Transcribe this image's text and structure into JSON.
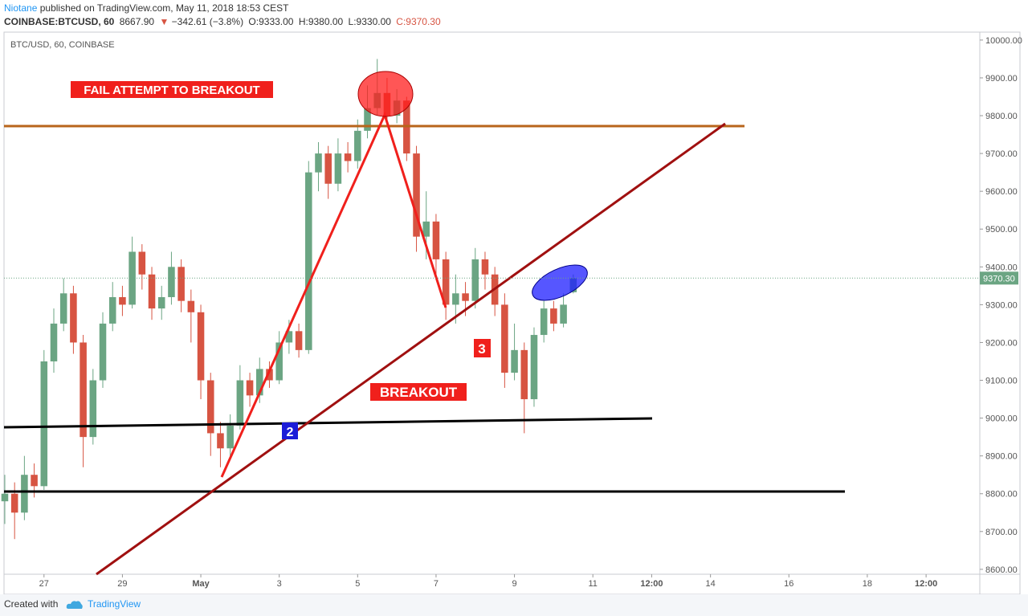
{
  "header": {
    "author": "Niotane",
    "published": "published on TradingView.com, May 11, 2018 18:53 CEST",
    "symbol": "COINBASE:BTCUSD, 60",
    "last": "8667.90",
    "arrow": "▼",
    "change": "−342.61 (−3.8%)",
    "open": "O:9333.00",
    "high": "H:9380.00",
    "low": "L:9330.00",
    "close": "C:9370.30"
  },
  "footer": {
    "created": "Created with",
    "brand": "TradingView"
  },
  "chart_data": {
    "type": "candlestick",
    "title": "BTC/USD, 60, COINBASE",
    "x": [
      -1,
      -0.75,
      -0.5,
      -0.25,
      0,
      0.25,
      0.5,
      0.75,
      1,
      1.25,
      1.5,
      1.75,
      2,
      2.25,
      2.5,
      2.75,
      3,
      3.25,
      3.5,
      3.75,
      4,
      4.25,
      4.5,
      4.75,
      5,
      5.25,
      5.5,
      5.75,
      6,
      6.25,
      6.5,
      6.75,
      7,
      7.25,
      7.5,
      7.75,
      8,
      8.25,
      8.5,
      8.75,
      9,
      9.25,
      9.5,
      9.75,
      10,
      10.25,
      10.5,
      10.75,
      11,
      11.25,
      11.5,
      11.75,
      12,
      12.25,
      12.5,
      12.75,
      13,
      13.25,
      13.5
    ],
    "open": [
      8780,
      8800,
      8750,
      8850,
      8820,
      9150,
      9250,
      9330,
      9200,
      8950,
      9100,
      9250,
      9320,
      9300,
      9440,
      9380,
      9290,
      9320,
      9400,
      9310,
      9280,
      9100,
      8960,
      8920,
      8980,
      9100,
      9060,
      9130,
      9100,
      9200,
      9230,
      9180,
      9650,
      9700,
      9620,
      9700,
      9680,
      9760,
      9820,
      9860,
      9800,
      9840,
      9700,
      9480,
      9520,
      9420,
      9300,
      9330,
      9310,
      9420,
      9380,
      9300,
      9120,
      9180,
      9050,
      9220,
      9290,
      9250,
      9333
    ],
    "high": [
      8850,
      8830,
      8900,
      8880,
      9180,
      9290,
      9370,
      9350,
      9220,
      9130,
      9280,
      9360,
      9350,
      9480,
      9460,
      9400,
      9350,
      9440,
      9420,
      9340,
      9300,
      9120,
      8990,
      9010,
      9140,
      9120,
      9160,
      9150,
      9230,
      9260,
      9250,
      9680,
      9730,
      9720,
      9740,
      9730,
      9790,
      9880,
      9950,
      9900,
      9870,
      9850,
      9720,
      9600,
      9540,
      9440,
      9380,
      9360,
      9450,
      9440,
      9400,
      9330,
      9250,
      9200,
      9240,
      9310,
      9310,
      9330,
      9380
    ],
    "low": [
      8720,
      8680,
      8730,
      8790,
      8810,
      9120,
      9230,
      9170,
      8870,
      8930,
      9080,
      9230,
      9270,
      9290,
      9340,
      9260,
      9260,
      9300,
      9280,
      9200,
      9050,
      8900,
      8870,
      8900,
      8970,
      9030,
      9040,
      9080,
      9090,
      9170,
      9160,
      9170,
      9600,
      9580,
      9600,
      9650,
      9660,
      9740,
      9800,
      9780,
      9780,
      9680,
      9440,
      9420,
      9380,
      9260,
      9250,
      9270,
      9290,
      9340,
      9270,
      9080,
      9100,
      8960,
      9030,
      9200,
      9230,
      9240,
      9330
    ],
    "close": [
      8800,
      8750,
      8850,
      8820,
      9150,
      9250,
      9330,
      9200,
      8950,
      9100,
      9250,
      9320,
      9300,
      9440,
      9380,
      9290,
      9320,
      9400,
      9310,
      9280,
      9100,
      8960,
      8920,
      8980,
      9100,
      9060,
      9130,
      9100,
      9200,
      9230,
      9180,
      9650,
      9700,
      9620,
      9700,
      9680,
      9760,
      9820,
      9860,
      9800,
      9840,
      9700,
      9480,
      9520,
      9420,
      9300,
      9330,
      9310,
      9420,
      9380,
      9300,
      9120,
      9180,
      9050,
      9220,
      9290,
      9250,
      9300,
      9370.3
    ],
    "up_color": "#6ba583",
    "down_color": "#d75442",
    "xlim": [
      -1.02,
      23.87
    ],
    "xticks": [
      {
        "value": 0,
        "label": "27"
      },
      {
        "value": 2,
        "label": "29"
      },
      {
        "value": 4,
        "label": "May"
      },
      {
        "value": 6,
        "label": "3"
      },
      {
        "value": 8,
        "label": "5"
      },
      {
        "value": 10,
        "label": "7"
      },
      {
        "value": 12,
        "label": "9"
      },
      {
        "value": 14,
        "label": "11"
      },
      {
        "value": 15.5,
        "label": "12:00"
      },
      {
        "value": 17,
        "label": "14"
      },
      {
        "value": 19,
        "label": "16"
      },
      {
        "value": 21,
        "label": "18"
      },
      {
        "value": 22.5,
        "label": "12:00"
      }
    ],
    "ylim": [
      8587,
      10021
    ],
    "yticks": [
      {
        "value": 8600,
        "label": "8600.00"
      },
      {
        "value": 8700,
        "label": "8700.00"
      },
      {
        "value": 8800,
        "label": "8800.00"
      },
      {
        "value": 8900,
        "label": "8900.00"
      },
      {
        "value": 9000,
        "label": "9000.00"
      },
      {
        "value": 9100,
        "label": "9100.00"
      },
      {
        "value": 9200,
        "label": "9200.00"
      },
      {
        "value": 9300,
        "label": "9300.00"
      },
      {
        "value": 9400,
        "label": "9400.00"
      },
      {
        "value": 9500,
        "label": "9500.00"
      },
      {
        "value": 9600,
        "label": "9600.00"
      },
      {
        "value": 9700,
        "label": "9700.00"
      },
      {
        "value": 9800,
        "label": "9800.00"
      },
      {
        "value": 9900,
        "label": "9900.00"
      },
      {
        "value": 10000,
        "label": "10000.00"
      }
    ],
    "grid": false,
    "last_price": {
      "value": 9370.3,
      "label": "9370.30"
    },
    "annotations": [
      "FAIL ATTEMPT TO BREAKOUT",
      "BREAKOUT",
      "2",
      "3"
    ]
  }
}
